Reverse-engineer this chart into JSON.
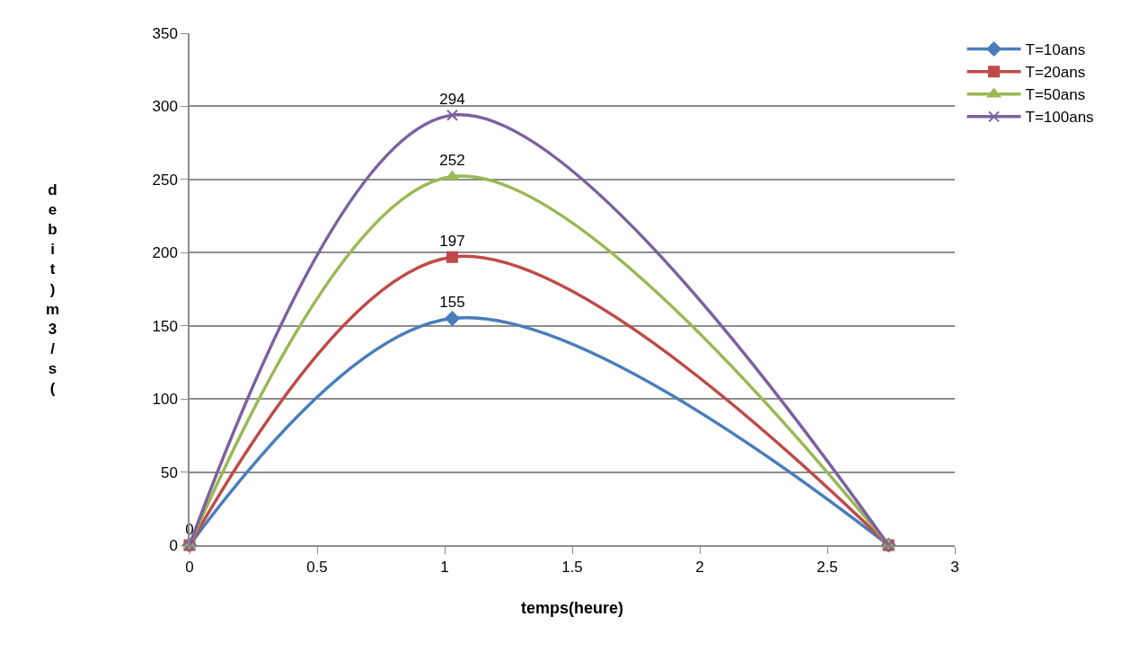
{
  "chart_data": {
    "type": "line",
    "xlabel": "temps(heure)",
    "ylabel": "debit)m3/s(",
    "x": [
      0,
      1.03,
      2.74
    ],
    "series": [
      {
        "name": "T=10ans",
        "color": "#4a7ebb",
        "marker": "diamond",
        "values": [
          0,
          155,
          0
        ],
        "value_labels": [
          "0",
          "155",
          null
        ]
      },
      {
        "name": "T=20ans",
        "color": "#be4b48",
        "marker": "square",
        "values": [
          0,
          197,
          0
        ],
        "value_labels": [
          null,
          "197",
          null
        ]
      },
      {
        "name": "T=50ans",
        "color": "#98b954",
        "marker": "triangle",
        "values": [
          0,
          252,
          0
        ],
        "value_labels": [
          null,
          "252",
          null
        ]
      },
      {
        "name": "T=100ans",
        "color": "#7d60a0",
        "marker": "cross",
        "values": [
          0,
          294,
          0
        ],
        "value_labels": [
          null,
          "294",
          null
        ]
      }
    ],
    "xlim": [
      0,
      3
    ],
    "xticks": [
      0,
      0.5,
      1,
      1.5,
      2,
      2.5,
      3
    ],
    "ylim": [
      0,
      350
    ],
    "yticks": [
      0,
      50,
      100,
      150,
      200,
      250,
      300,
      350
    ],
    "grid": "y",
    "legend": "right",
    "line_style": "solid"
  }
}
